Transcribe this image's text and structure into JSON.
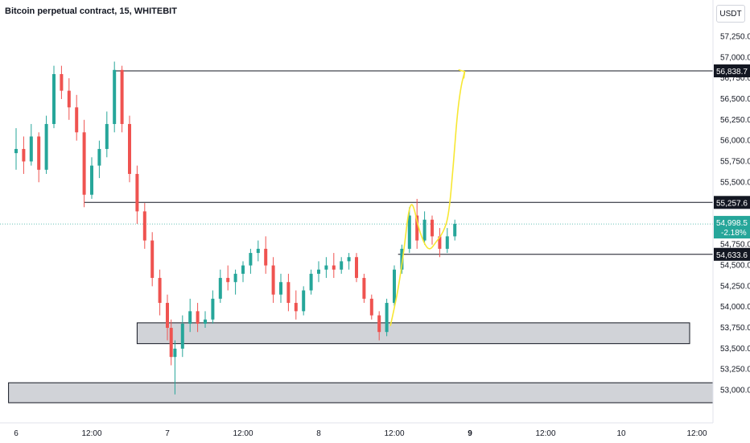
{
  "header": {
    "title": "Bitcoin perpetual contract, 15, WHITEBIT",
    "currency": "USDT"
  },
  "chart_data": {
    "type": "candlestick",
    "symbol": "Bitcoin perpetual contract",
    "interval": "15",
    "exchange": "WHITEBIT",
    "ylim": [
      52850,
      57400
    ],
    "y_ticks": [
      "57,250.0",
      "57,000.0",
      "56,750.0",
      "56,500.0",
      "56,250.0",
      "56,000.0",
      "55,750.0",
      "55,500.0",
      "55,250.0",
      "55,000.0",
      "54,750.0",
      "54,500.0",
      "54,250.0",
      "54,000.0",
      "53,750.0",
      "53,500.0",
      "53,250.0",
      "53,000.0"
    ],
    "x_ticks": [
      "6",
      "12:00",
      "7",
      "12:00",
      "8",
      "12:00",
      "9",
      "12:00",
      "10",
      "12:00"
    ],
    "x_ticks_bold": [
      "9"
    ],
    "horizontal_levels": [
      {
        "price": 56838.7,
        "label": "56,838.7",
        "x_start_tick": 1.3
      },
      {
        "price": 55257.6,
        "label": "55,257.6",
        "x_start_tick": 0.9
      },
      {
        "price": 54633.6,
        "label": "54,633.6",
        "x_start_tick": 5.05
      }
    ],
    "zones": [
      {
        "from": 53560,
        "to": 53810,
        "x_start_tick": 1.6
      },
      {
        "from": 52850,
        "to": 53090,
        "x_start_tick": -0.1
      }
    ],
    "last_price": {
      "value": "54,998.5",
      "change": "-2.18%",
      "color": "#26a69a"
    },
    "colors": {
      "up": "#26a69a",
      "down": "#ef5350",
      "drawing": "#f7e733",
      "zone": "#c9cbd1"
    },
    "candles": [
      [
        0.0,
        55850,
        56150,
        55650,
        55900
      ],
      [
        0.1,
        55900,
        56050,
        55600,
        55750
      ],
      [
        0.2,
        55750,
        56200,
        55700,
        56050
      ],
      [
        0.3,
        56050,
        56100,
        55500,
        55650
      ],
      [
        0.4,
        55650,
        56300,
        55600,
        56200
      ],
      [
        0.5,
        56200,
        56900,
        56150,
        56800
      ],
      [
        0.6,
        56800,
        56900,
        56500,
        56600
      ],
      [
        0.7,
        56600,
        56750,
        56250,
        56400
      ],
      [
        0.8,
        56400,
        56550,
        56000,
        56100
      ],
      [
        0.9,
        56100,
        56250,
        55200,
        55350
      ],
      [
        1.0,
        55350,
        55800,
        55300,
        55700
      ],
      [
        1.1,
        55700,
        56000,
        55550,
        55900
      ],
      [
        1.2,
        55900,
        56350,
        55800,
        56200
      ],
      [
        1.3,
        56200,
        56950,
        56100,
        56850
      ],
      [
        1.4,
        56850,
        56900,
        56100,
        56200
      ],
      [
        1.5,
        56200,
        56300,
        55500,
        55600
      ],
      [
        1.6,
        55600,
        55700,
        55000,
        55150
      ],
      [
        1.7,
        55150,
        55250,
        54700,
        54800
      ],
      [
        1.8,
        54800,
        54900,
        54250,
        54350
      ],
      [
        1.9,
        54350,
        54450,
        53900,
        54050
      ],
      [
        2.0,
        54050,
        54150,
        53600,
        53750
      ],
      [
        2.05,
        53750,
        53850,
        53300,
        53400
      ],
      [
        2.1,
        53400,
        53600,
        52950,
        53500
      ],
      [
        2.2,
        53500,
        53900,
        53400,
        53800
      ],
      [
        2.3,
        53800,
        54100,
        53700,
        53950
      ],
      [
        2.4,
        53950,
        54050,
        53700,
        53800
      ],
      [
        2.5,
        53800,
        53950,
        53750,
        53850
      ],
      [
        2.6,
        53850,
        54200,
        53800,
        54100
      ],
      [
        2.7,
        54100,
        54450,
        54050,
        54350
      ],
      [
        2.8,
        54350,
        54500,
        54200,
        54300
      ],
      [
        2.9,
        54300,
        54450,
        54150,
        54400
      ],
      [
        3.0,
        54400,
        54550,
        54300,
        54500
      ],
      [
        3.1,
        54500,
        54700,
        54400,
        54650
      ],
      [
        3.2,
        54650,
        54800,
        54550,
        54700
      ],
      [
        3.3,
        54700,
        54850,
        54400,
        54500
      ],
      [
        3.4,
        54500,
        54600,
        54050,
        54150
      ],
      [
        3.5,
        54150,
        54400,
        54050,
        54300
      ],
      [
        3.6,
        54300,
        54400,
        53950,
        54050
      ],
      [
        3.7,
        54050,
        54200,
        53850,
        53950
      ],
      [
        3.8,
        53950,
        54250,
        53900,
        54200
      ],
      [
        3.9,
        54200,
        54450,
        54150,
        54400
      ],
      [
        4.0,
        54400,
        54550,
        54300,
        54450
      ],
      [
        4.1,
        54450,
        54600,
        54350,
        54500
      ],
      [
        4.2,
        54500,
        54650,
        54350,
        54450
      ],
      [
        4.3,
        54450,
        54600,
        54400,
        54550
      ],
      [
        4.4,
        54550,
        54650,
        54450,
        54600
      ],
      [
        4.5,
        54600,
        54650,
        54300,
        54350
      ],
      [
        4.6,
        54350,
        54400,
        54050,
        54100
      ],
      [
        4.7,
        54100,
        54150,
        53850,
        53900
      ],
      [
        4.8,
        53900,
        53950,
        53600,
        53700
      ],
      [
        4.9,
        53700,
        54100,
        53650,
        54050
      ],
      [
        5.0,
        54050,
        54500,
        54000,
        54450
      ],
      [
        5.1,
        54450,
        54750,
        54400,
        54700
      ],
      [
        5.2,
        54700,
        55200,
        54650,
        55100
      ],
      [
        5.3,
        55100,
        55300,
        54700,
        54800
      ],
      [
        5.4,
        54800,
        55150,
        54750,
        55050
      ],
      [
        5.5,
        55050,
        55100,
        54750,
        54850
      ],
      [
        5.6,
        54850,
        54950,
        54600,
        54700
      ],
      [
        5.7,
        54700,
        54950,
        54650,
        54850
      ],
      [
        5.8,
        54850,
        55050,
        54800,
        55000
      ]
    ],
    "drawing": {
      "path": [
        [
          4.95,
          53780
        ],
        [
          5.05,
          54200
        ],
        [
          5.13,
          54700
        ],
        [
          5.18,
          55100
        ],
        [
          5.22,
          55250
        ],
        [
          5.26,
          55200
        ],
        [
          5.32,
          54950
        ],
        [
          5.4,
          54750
        ],
        [
          5.47,
          54680
        ],
        [
          5.55,
          54780
        ],
        [
          5.65,
          54900
        ],
        [
          5.72,
          55100
        ],
        [
          5.78,
          55700
        ],
        [
          5.83,
          56300
        ],
        [
          5.88,
          56650
        ],
        [
          5.93,
          56830
        ]
      ]
    }
  }
}
